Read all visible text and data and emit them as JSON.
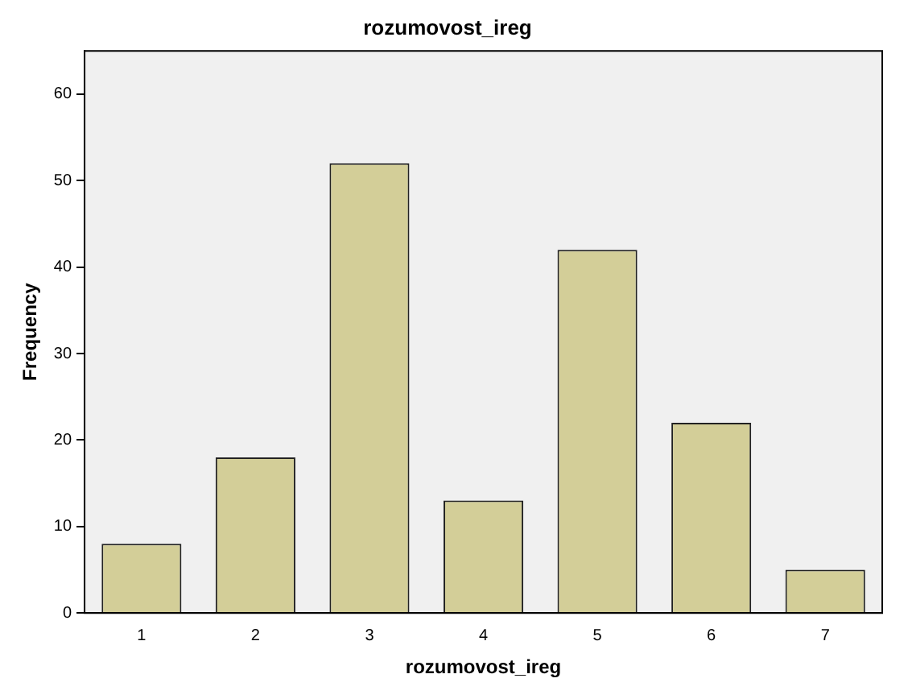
{
  "chart_data": {
    "type": "bar",
    "title": "rozumovost_ireg",
    "xlabel": "rozumovost_ireg",
    "ylabel": "Frequency",
    "categories": [
      "1",
      "2",
      "3",
      "4",
      "5",
      "6",
      "7"
    ],
    "values": [
      8,
      18,
      52,
      13,
      42,
      22,
      5
    ],
    "color": "#d3ce98",
    "ylim": [
      0,
      65
    ],
    "yticks": [
      0,
      10,
      20,
      30,
      40,
      50,
      60
    ],
    "grid": false,
    "legend": false
  }
}
